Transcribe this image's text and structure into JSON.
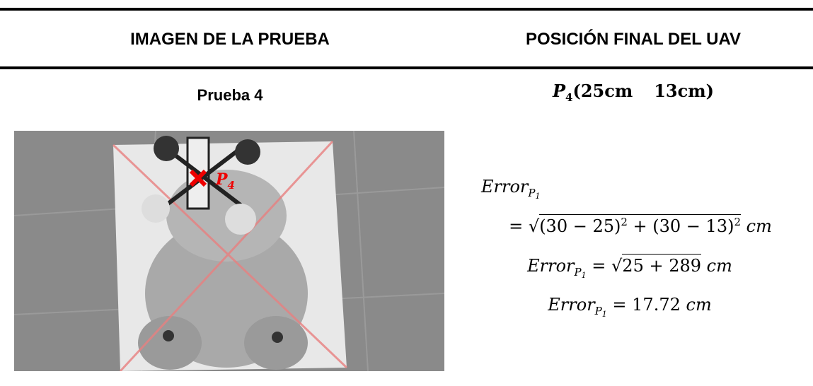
{
  "header": {
    "left": "IMAGEN DE LA PRUEBA",
    "right": "POSICIÓN FINAL DEL UAV"
  },
  "row": {
    "test": "Prueba 4",
    "position": {
      "symbol": "P",
      "index": "4",
      "x": "(25cm",
      "y": "13cm)"
    },
    "image_label": {
      "symbol": "P",
      "index": "4"
    },
    "error": {
      "name": "Error",
      "sub": "P",
      "subsub": "1",
      "line1": {
        "equals": "=",
        "radical": "√",
        "a": "(30 − 25)",
        "a_exp": "2",
        "b": " + (30 − 13)",
        "b_exp": "2",
        "unit": "cm"
      },
      "line2": {
        "equals": "=",
        "radical": "√",
        "radicand": "25 + 289",
        "unit": "cm"
      },
      "line3": {
        "equals": "=",
        "value": "17.72",
        "unit": "cm"
      }
    }
  }
}
